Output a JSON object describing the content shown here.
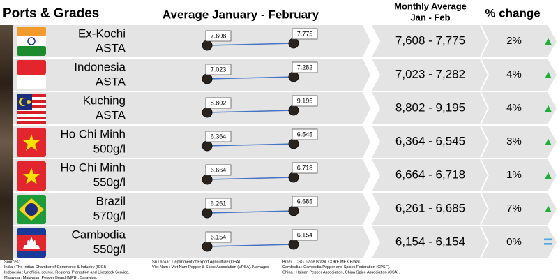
{
  "header": {
    "title": "Ports & Grades",
    "middle": "Average January - February",
    "monthly": [
      "Monthly Average",
      "Jan - Feb"
    ],
    "change": "% change"
  },
  "rows": [
    {
      "name": [
        "Ex-Kochi",
        "ASTA"
      ],
      "jan": "7.608",
      "feb": "7.775",
      "range": "7,608 - 7,775",
      "pct": "2%",
      "indicator": "▲"
    },
    {
      "name": [
        "Indonesia",
        "ASTA"
      ],
      "jan": "7.023",
      "feb": "7.282",
      "range": "7,023 - 7,282",
      "pct": "4%",
      "indicator": "▲"
    },
    {
      "name": [
        "Kuching",
        "ASTA"
      ],
      "jan": "8.802",
      "feb": "9.195",
      "range": "8,802 - 9,195",
      "pct": "4%",
      "indicator": "▲"
    },
    {
      "name": [
        "Ho Chi Minh",
        "500g/l"
      ],
      "jan": "6.364",
      "feb": "6.545",
      "range": "6,364 - 6,545",
      "pct": "3%",
      "indicator": "▲"
    },
    {
      "name": [
        "Ho Chi Minh",
        "550g/l"
      ],
      "jan": "6.664",
      "feb": "6.718",
      "range": "6,664 - 6,718",
      "pct": "1%",
      "indicator": "▲"
    },
    {
      "name": [
        "Brazil",
        "570g/l"
      ],
      "jan": "6.261",
      "feb": "6.685",
      "range": "6,261 - 6,685",
      "pct": "7%",
      "indicator": "▲"
    },
    {
      "name": [
        "Cambodia",
        "550g/l"
      ],
      "jan": "6.154",
      "feb": "6.154",
      "range": "6,154 - 6,154",
      "pct": "0%",
      "indicator": "="
    }
  ],
  "sources": [
    [
      "Sources:",
      "India : The Indian Chamber of Commerce & Industry (ICCI)",
      "Indonesia : Unofficial source, Regional Plantation and Livestock Service.",
      "Malaysia : Malaysian Pepper Board (MPB), Sarawice."
    ],
    [
      "Sri Lanka : Department of Export Agriculture (DEA).",
      "Viet Nam : Viet Nam Pepper & Spice Association (VPSA). Namagro."
    ],
    [
      "Brazil : CSG Trade Brazil, COREIMEX Brazil.",
      "Cambodia : Cambodia Pepper and Spices Federation (CPSF).",
      "China : Hainan Pepper Association, China Spice Association (CSA)."
    ]
  ]
}
